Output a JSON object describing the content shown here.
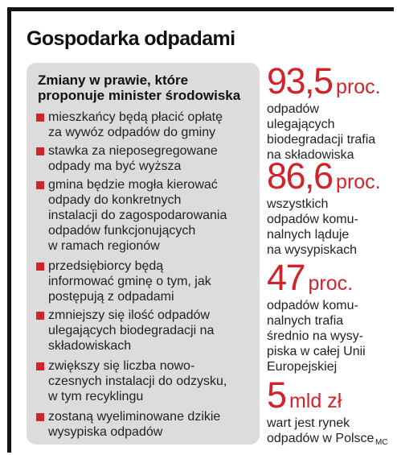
{
  "title": "Gospodarka odpadami",
  "box": {
    "heading_lines": [
      "Zmiany w prawie, które",
      "proponuje minister środowiska"
    ],
    "items": [
      {
        "lines": [
          "mieszkańcy będą płacić opłatę",
          "za wywóz odpadów do gminy"
        ]
      },
      {
        "lines": [
          "stawka za nieposegregowane",
          "odpady ma być wyższa"
        ]
      },
      {
        "lines": [
          "gmina będzie mogła kierować",
          "odpady do konkretnych",
          "instalacji do zagospodarowania",
          "odpadów funkcjonujących",
          "w ramach regionów"
        ]
      },
      {
        "lines": [
          "przedsiębiorcy będą",
          "informować gminę o tym, jak",
          "postępują z odpadami"
        ]
      },
      {
        "lines": [
          "zmniejszy się ilość odpadów",
          "ulegających biodegradacji na",
          "składowiskach"
        ]
      },
      {
        "lines": [
          "zwiększy się liczba nowo-",
          "czesnych instalacji do odzysku,",
          "w tym recyklingu"
        ]
      },
      {
        "lines": [
          "zostaną wyeliminowane dzikie",
          "wysypiska odpadów"
        ]
      }
    ]
  },
  "stats": [
    {
      "value": "93,5",
      "unit": "proc.",
      "lines": [
        "odpadów",
        "ulegających",
        "biodegradacji trafia",
        "na składowiska"
      ]
    },
    {
      "value": "86,6",
      "unit": "proc.",
      "lines": [
        "wszystkich",
        "odpadów komu-",
        "nalnych ląduje",
        "na wysypiskach"
      ]
    },
    {
      "value": "47",
      "unit": "proc.",
      "lines": [
        "odpadów komu-",
        "nalnych trafia",
        "średnio na wysy-",
        "piska w całej Unii",
        "Europejskiej"
      ]
    },
    {
      "value": "5",
      "unit": "mld zł",
      "lines": [
        "wart jest rynek",
        "odpadów w Polsce"
      ]
    }
  ],
  "credit": "MC",
  "colors": {
    "accent": "#d2232a",
    "box_bg": "#dcdcdc",
    "rule": "#111111"
  }
}
